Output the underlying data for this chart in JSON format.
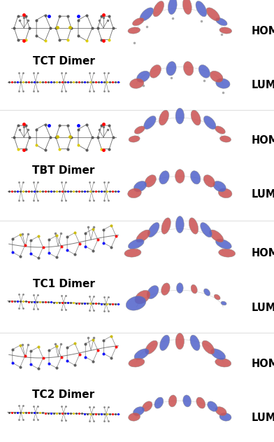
{
  "background_color": "#ffffff",
  "groups": [
    {
      "label": "TCT Dimer",
      "twisted_top": false,
      "twisted_side": false,
      "homo_red_left": true
    },
    {
      "label": "TBT Dimer",
      "twisted_top": false,
      "twisted_side": false,
      "homo_red_left": false
    },
    {
      "label": "TC1 Dimer",
      "twisted_top": true,
      "twisted_side": true,
      "homo_red_left": true
    },
    {
      "label": "TC2 Dimer",
      "twisted_top": true,
      "twisted_side": true,
      "homo_red_left": true
    }
  ],
  "label_fontsize": 11,
  "homo_lumo_fontsize": 10.5,
  "label_fontweight": "bold",
  "homo_lumo_fontweight": "bold",
  "figwidth": 3.92,
  "figheight": 6.31,
  "dpi": 100,
  "red_c": "#cc5555",
  "blue_c": "#5566cc",
  "light_red": "#dd8888",
  "light_blue": "#8899dd"
}
